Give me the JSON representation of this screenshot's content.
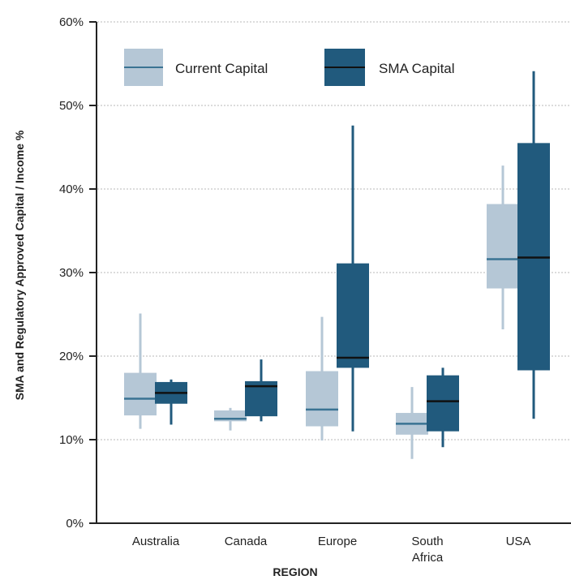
{
  "chart_data": {
    "type": "boxplot",
    "title": "",
    "xlabel": "REGION",
    "ylabel": "SMA and Regulatory Approved Capital / Income %",
    "ylim": [
      0,
      60
    ],
    "yticks": [
      0,
      10,
      20,
      30,
      40,
      50,
      60
    ],
    "ytick_labels": [
      "0%",
      "10%",
      "20%",
      "30%",
      "40%",
      "50%",
      "60%"
    ],
    "grid": "horizontal dotted",
    "legend_position": "top-left",
    "categories": [
      {
        "lines": [
          "Australia"
        ]
      },
      {
        "lines": [
          "Canada"
        ]
      },
      {
        "lines": [
          "Europe"
        ]
      },
      {
        "lines": [
          "South",
          "Africa"
        ]
      },
      {
        "lines": [
          "USA"
        ]
      }
    ],
    "series": [
      {
        "name": "Current Capital",
        "color": "#b5c7d6",
        "median_color": "#3a7393",
        "boxes": [
          {
            "min": 11.3,
            "q1": 12.9,
            "median": 14.9,
            "q3": 18.0,
            "max": 25.1
          },
          {
            "min": 11.1,
            "q1": 12.2,
            "median": 12.5,
            "q3": 13.5,
            "max": 13.8
          },
          {
            "min": 9.9,
            "q1": 11.6,
            "median": 13.6,
            "q3": 18.2,
            "max": 24.7
          },
          {
            "min": 7.7,
            "q1": 10.6,
            "median": 11.9,
            "q3": 13.2,
            "max": 16.3
          },
          {
            "min": 23.2,
            "q1": 28.1,
            "median": 31.6,
            "q3": 38.2,
            "max": 42.8
          }
        ]
      },
      {
        "name": "SMA Capital",
        "color": "#215a7d",
        "median_color": "#111111",
        "boxes": [
          {
            "min": 11.8,
            "q1": 14.3,
            "median": 15.6,
            "q3": 16.9,
            "max": 17.2
          },
          {
            "min": 12.2,
            "q1": 12.8,
            "median": 16.4,
            "q3": 17.0,
            "max": 19.6
          },
          {
            "min": 11.0,
            "q1": 18.6,
            "median": 19.8,
            "q3": 31.1,
            "max": 47.6
          },
          {
            "min": 9.1,
            "q1": 11.0,
            "median": 14.6,
            "q3": 17.7,
            "max": 18.6
          },
          {
            "min": 12.5,
            "q1": 18.3,
            "median": 31.8,
            "q3": 45.5,
            "max": 54.1
          }
        ]
      }
    ]
  }
}
